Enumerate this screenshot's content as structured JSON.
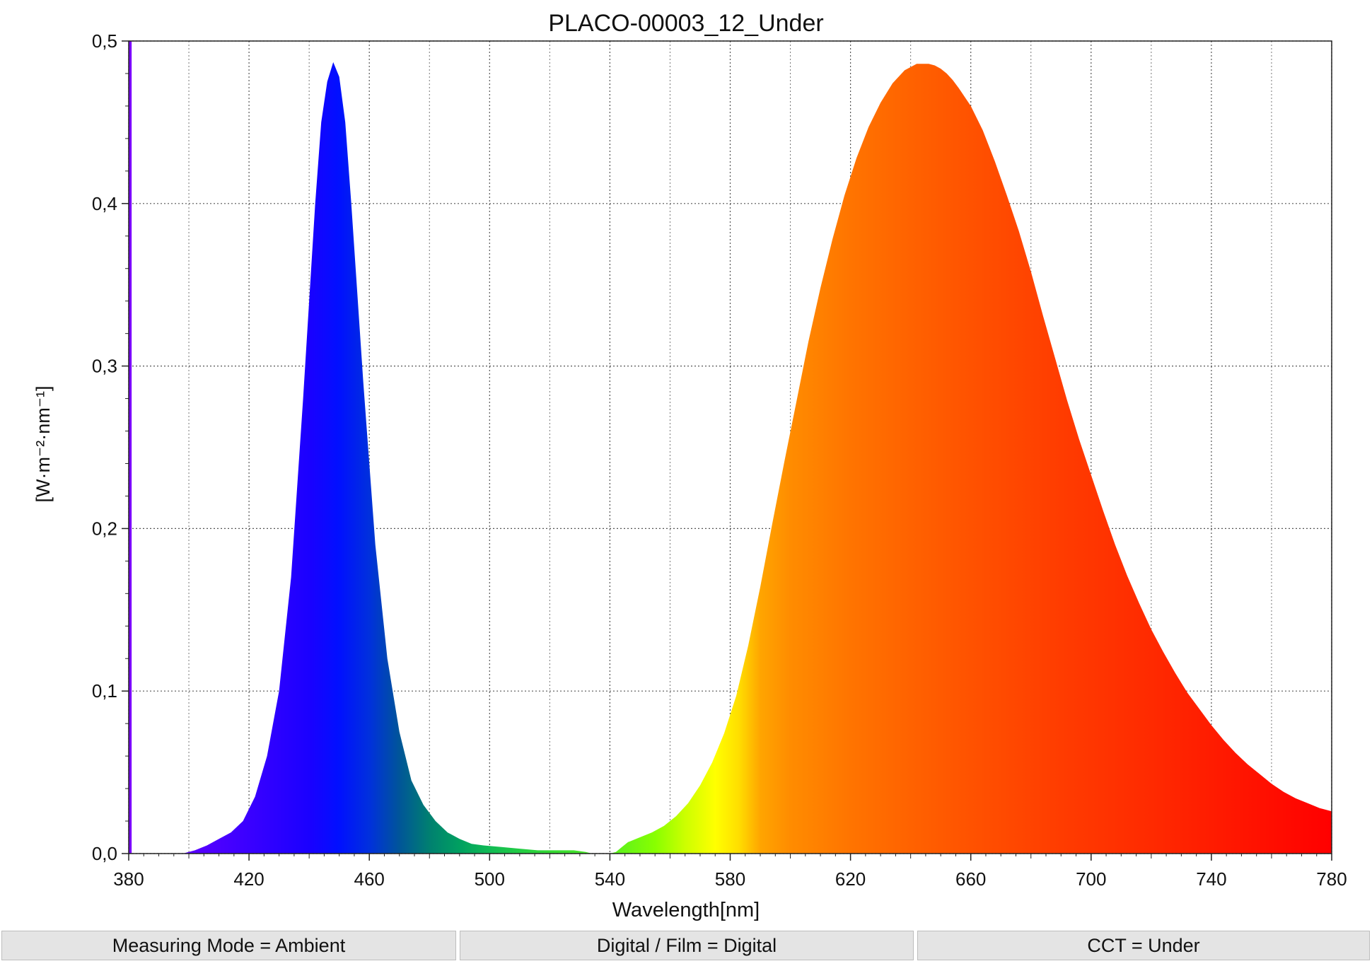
{
  "chart_data": {
    "type": "area",
    "title": "PLACO-00003_12_Under",
    "xlabel": "Wavelength[nm]",
    "ylabel": "[W·m⁻²·nm⁻¹]",
    "xlim": [
      380,
      780
    ],
    "ylim": [
      0,
      0.5
    ],
    "grid": true,
    "x_ticks": [
      380,
      420,
      460,
      500,
      540,
      580,
      620,
      660,
      700,
      740,
      780
    ],
    "x_tick_labels": [
      "380",
      "420",
      "460",
      "500",
      "540",
      "580",
      "620",
      "660",
      "700",
      "740",
      "780"
    ],
    "y_ticks": [
      0,
      0.1,
      0.2,
      0.3,
      0.4,
      0.5
    ],
    "y_tick_labels": [
      "0,0",
      "0,1",
      "0,2",
      "0,3",
      "0,4",
      "0,5"
    ],
    "fill": "wavelength-color spectrum",
    "x": [
      398,
      402,
      406,
      410,
      414,
      418,
      422,
      426,
      430,
      434,
      438,
      442,
      444,
      446,
      448,
      450,
      452,
      454,
      458,
      462,
      466,
      470,
      474,
      478,
      482,
      486,
      490,
      494,
      498,
      504,
      510,
      516,
      522,
      528,
      532,
      534,
      538,
      540,
      542,
      544,
      546,
      550,
      554,
      558,
      562,
      566,
      570,
      574,
      578,
      582,
      586,
      590,
      594,
      598,
      602,
      606,
      610,
      614,
      618,
      622,
      626,
      630,
      634,
      638,
      642,
      646,
      648,
      650,
      652,
      654,
      656,
      660,
      664,
      668,
      672,
      676,
      680,
      684,
      688,
      692,
      696,
      700,
      704,
      708,
      712,
      716,
      720,
      724,
      728,
      732,
      736,
      740,
      744,
      748,
      752,
      756,
      760,
      764,
      768,
      772,
      776,
      780
    ],
    "y": [
      0.0,
      0.002,
      0.005,
      0.009,
      0.013,
      0.02,
      0.035,
      0.06,
      0.1,
      0.17,
      0.28,
      0.4,
      0.45,
      0.475,
      0.487,
      0.478,
      0.45,
      0.4,
      0.29,
      0.19,
      0.12,
      0.075,
      0.045,
      0.03,
      0.02,
      0.013,
      0.009,
      0.006,
      0.005,
      0.004,
      0.003,
      0.002,
      0.002,
      0.002,
      0.001,
      0.0,
      0.0,
      0.0,
      0.001,
      0.004,
      0.007,
      0.01,
      0.013,
      0.017,
      0.023,
      0.031,
      0.042,
      0.056,
      0.074,
      0.097,
      0.128,
      0.164,
      0.203,
      0.241,
      0.278,
      0.315,
      0.348,
      0.378,
      0.405,
      0.428,
      0.447,
      0.462,
      0.474,
      0.482,
      0.486,
      0.486,
      0.485,
      0.483,
      0.48,
      0.476,
      0.471,
      0.46,
      0.445,
      0.426,
      0.405,
      0.383,
      0.358,
      0.331,
      0.305,
      0.279,
      0.255,
      0.233,
      0.211,
      0.19,
      0.171,
      0.154,
      0.138,
      0.124,
      0.111,
      0.099,
      0.089,
      0.079,
      0.07,
      0.062,
      0.055,
      0.049,
      0.043,
      0.038,
      0.034,
      0.031,
      0.028,
      0.026
    ],
    "spike": {
      "x": 380.5,
      "y": 0.5
    }
  },
  "status_bar": [
    {
      "label": "Measuring Mode = Ambient"
    },
    {
      "label": "Digital / Film = Digital"
    },
    {
      "label": "CCT = Under"
    }
  ]
}
